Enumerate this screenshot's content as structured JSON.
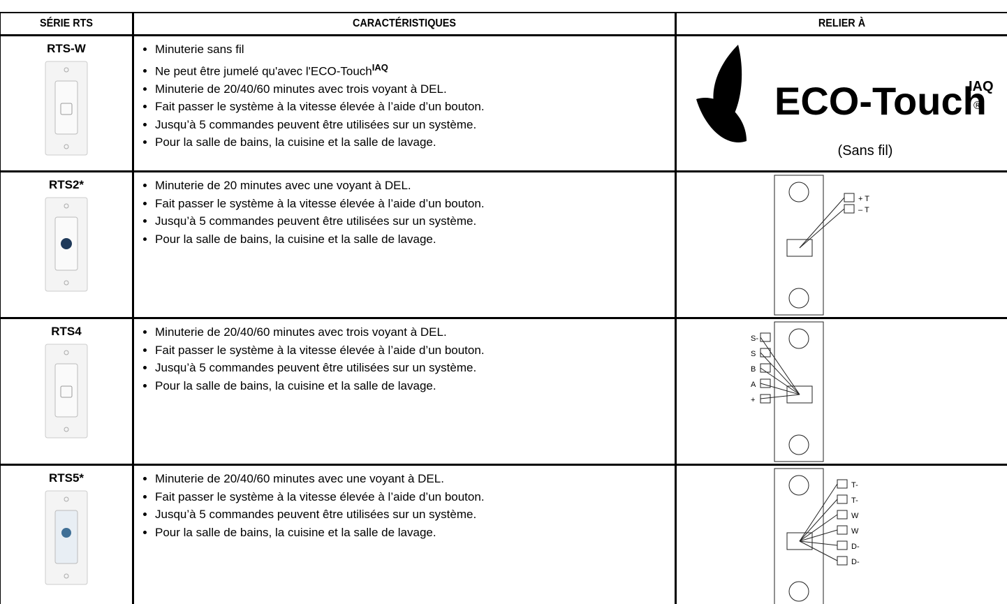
{
  "table": {
    "header": [
      "SÉRIE RTS",
      "CARACTÉRISTIQUES",
      "RELIER À"
    ],
    "rows": [
      {
        "model": "RTS-W",
        "features": [
          "Minuterie sans fil",
          {
            "text": "Ne peut être jumelé qu'avec l'ECO-Touch",
            "sup": "IAQ"
          },
          "Minuterie de 20/40/60 minutes avec trois voyant à DEL.",
          "Fait passer le système à la vitesse élevée à l’aide d’un bouton.",
          "Jusqu’à 5 commandes peuvent être utilisées sur un système.",
          "Pour la salle de bains, la cuisine et la salle de lavage."
        ],
        "connect": {
          "logo": "ECO-Touch",
          "logo_sup": "IAQ",
          "logo_mark": "®",
          "note": "(Sans fil)"
        }
      },
      {
        "model": "RTS2*",
        "features": [
          "Minuterie de 20 minutes avec une voyant à DEL.",
          "Fait passer le système à la vitesse élevée à l’aide d’un bouton.",
          "Jusqu’à 5 commandes peuvent être utilisées sur un système.",
          "Pour la salle de bains, la cuisine et la salle de lavage."
        ],
        "connect": {
          "terminals": [
            "+ T",
            "– T"
          ]
        }
      },
      {
        "model": "RTS4",
        "features": [
          "Minuterie de 20/40/60 minutes avec trois voyant à DEL.",
          "Fait passer le système à la vitesse élevée à l’aide d’un bouton.",
          "Jusqu’à 5 commandes peuvent être utilisées sur un système.",
          "Pour la salle de bains, la cuisine et la salle de lavage."
        ],
        "connect": {
          "terminals": [
            "S-",
            "S",
            "B",
            "A",
            "+"
          ]
        }
      },
      {
        "model": "RTS5*",
        "features": [
          "Minuterie de 20/40/60 minutes avec une voyant à DEL.",
          "Fait passer le système à la vitesse élevée à l’aide d’un bouton.",
          "Jusqu’à 5 commandes peuvent être utilisées sur un système.",
          "Pour la salle de bains, la cuisine et la salle de lavage."
        ],
        "connect": {
          "terminals": [
            "T-",
            "T-",
            "W",
            "W",
            "D-",
            "D-"
          ]
        }
      }
    ]
  }
}
